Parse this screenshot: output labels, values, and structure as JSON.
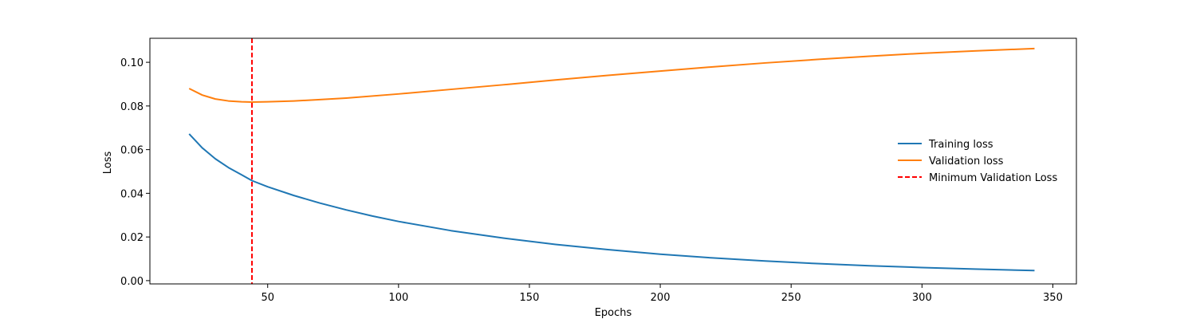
{
  "chart_data": {
    "type": "line",
    "xlabel": "Epochs",
    "ylabel": "Loss",
    "xlim": [
      5,
      359
    ],
    "ylim": [
      -0.0015,
      0.111
    ],
    "xticks": [
      50,
      100,
      150,
      200,
      250,
      300,
      350
    ],
    "yticks": [
      0.0,
      0.02,
      0.04,
      0.06,
      0.08,
      0.1
    ],
    "ytick_labels": [
      "0.00",
      "0.02",
      "0.04",
      "0.06",
      "0.08",
      "0.10"
    ],
    "grid": false,
    "legend_position": "center-right",
    "series": [
      {
        "name": "Training loss",
        "color": "#1f77b4",
        "style": "solid",
        "x": [
          20,
          25,
          30,
          35,
          40,
          44,
          50,
          60,
          70,
          80,
          90,
          100,
          120,
          140,
          160,
          180,
          200,
          220,
          240,
          260,
          280,
          300,
          320,
          343
        ],
        "y": [
          0.0672,
          0.0608,
          0.0558,
          0.0518,
          0.0485,
          0.0458,
          0.043,
          0.039,
          0.0355,
          0.0324,
          0.0296,
          0.0271,
          0.0229,
          0.0195,
          0.0166,
          0.0142,
          0.0121,
          0.0104,
          0.009,
          0.0078,
          0.0068,
          0.006,
          0.0053,
          0.0046
        ]
      },
      {
        "name": "Validation loss",
        "color": "#ff7f0e",
        "style": "solid",
        "x": [
          20,
          25,
          30,
          35,
          40,
          44,
          50,
          60,
          70,
          80,
          100,
          120,
          140,
          160,
          180,
          200,
          220,
          240,
          260,
          280,
          300,
          320,
          343
        ],
        "y": [
          0.088,
          0.085,
          0.0832,
          0.0823,
          0.0819,
          0.0818,
          0.0819,
          0.0823,
          0.0829,
          0.0836,
          0.0855,
          0.0876,
          0.0897,
          0.0919,
          0.094,
          0.096,
          0.0979,
          0.0997,
          0.1013,
          0.1028,
          0.1041,
          0.1052,
          0.1063
        ]
      }
    ],
    "vlines": [
      {
        "name": "Minimum Validation Loss",
        "x": 44,
        "color": "#ff0000",
        "style": "dashed"
      }
    ]
  }
}
